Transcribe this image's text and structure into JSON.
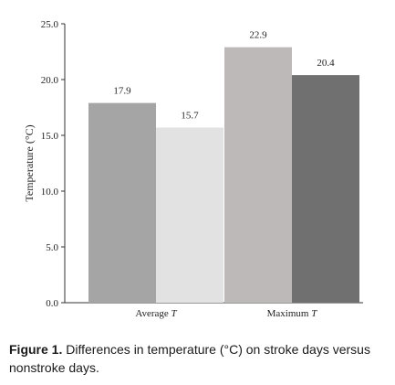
{
  "chart_data": {
    "type": "bar",
    "ylabel": "Temperature (°C)",
    "ylim": [
      0,
      25
    ],
    "yticks": [
      "0.0",
      "5.0",
      "10.0",
      "15.0",
      "20.0",
      "25.0"
    ],
    "grid": false,
    "groups": [
      {
        "category": "Average T",
        "category_base": "Average ",
        "category_var": "T",
        "bars": [
          {
            "value": 17.9,
            "label": "17.9",
            "color": "#a5a5a5"
          },
          {
            "value": 15.7,
            "label": "15.7",
            "color": "#e2e2e2"
          }
        ]
      },
      {
        "category": "Maximum T",
        "category_base": "Maximum ",
        "category_var": "T",
        "bars": [
          {
            "value": 22.9,
            "label": "22.9",
            "color": "#bdb9b8"
          },
          {
            "value": 20.4,
            "label": "20.4",
            "color": "#707070"
          }
        ]
      }
    ]
  },
  "caption": {
    "label": "Figure 1.",
    "text": "Differences in temperature (°C) on stroke days versus nonstroke days."
  }
}
